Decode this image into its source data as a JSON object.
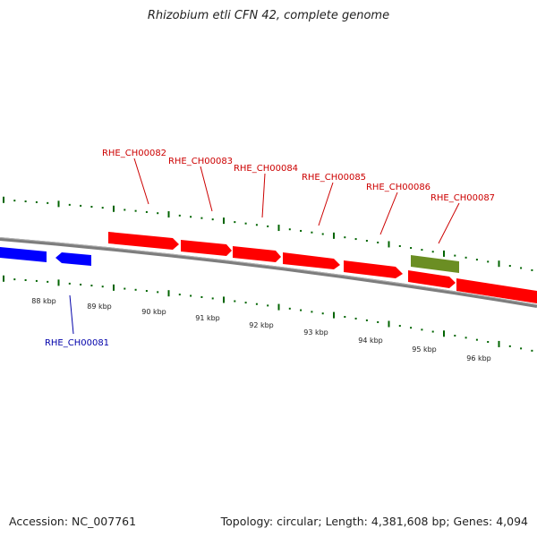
{
  "header": {
    "title": "Rhizobium etli CFN 42, complete genome"
  },
  "footer": {
    "accession": "Accession: NC_007761",
    "stats": "Topology: circular; Length: 4,381,608 bp; Genes: 4,094"
  },
  "colors": {
    "forward_gene": "#ff0000",
    "reverse_gene": "#0000ff",
    "other_feature": "#6b8e23",
    "backbone": "#808080",
    "tick": "#006400",
    "label_forward": "#cc0000",
    "label_reverse": "#0000aa"
  },
  "scale_labels": [
    "88 kbp",
    "89 kbp",
    "90 kbp",
    "91 kbp",
    "92 kbp",
    "93 kbp",
    "94 kbp",
    "95 kbp",
    "96 kbp"
  ],
  "gene_labels": [
    {
      "text": "RHE_CH00081",
      "strand": "reverse"
    },
    {
      "text": "RHE_CH00082",
      "strand": "forward"
    },
    {
      "text": "RHE_CH00083",
      "strand": "forward"
    },
    {
      "text": "RHE_CH00084",
      "strand": "forward"
    },
    {
      "text": "RHE_CH00085",
      "strand": "forward"
    },
    {
      "text": "RHE_CH00086",
      "strand": "forward"
    },
    {
      "text": "RHE_CH00087",
      "strand": "forward"
    }
  ]
}
